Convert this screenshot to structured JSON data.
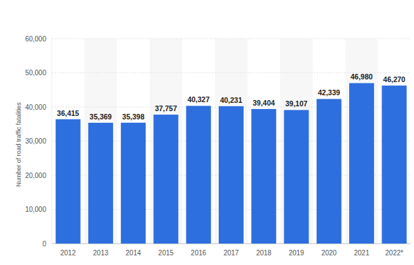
{
  "chart_data": {
    "type": "bar",
    "ylabel": "Number of road traffic fatalities",
    "categories": [
      "2012",
      "2013",
      "2014",
      "2015",
      "2016",
      "2017",
      "2018",
      "2019",
      "2020",
      "2021",
      "2022*"
    ],
    "values": [
      36415,
      35369,
      35398,
      37757,
      40327,
      40231,
      39404,
      39107,
      42339,
      46980,
      46270
    ],
    "value_labels": [
      "36,415",
      "35,369",
      "35,398",
      "37,757",
      "40,327",
      "40,231",
      "39,404",
      "39,107",
      "42,339",
      "46,980",
      "46,270"
    ],
    "color": "#2e6fdf",
    "ylim": [
      0,
      60000
    ],
    "yticks": [
      0,
      {
        "value": 10000,
        "label": "10,000"
      },
      {
        "value": 20000,
        "label": "20,000"
      },
      {
        "value": 30000,
        "label": "30,000"
      },
      {
        "value": 40000,
        "label": "40,000"
      },
      {
        "value": 50000,
        "label": "50,000"
      },
      {
        "value": 60000,
        "label": "60,000"
      }
    ],
    "grid": true,
    "data_labels": true
  }
}
